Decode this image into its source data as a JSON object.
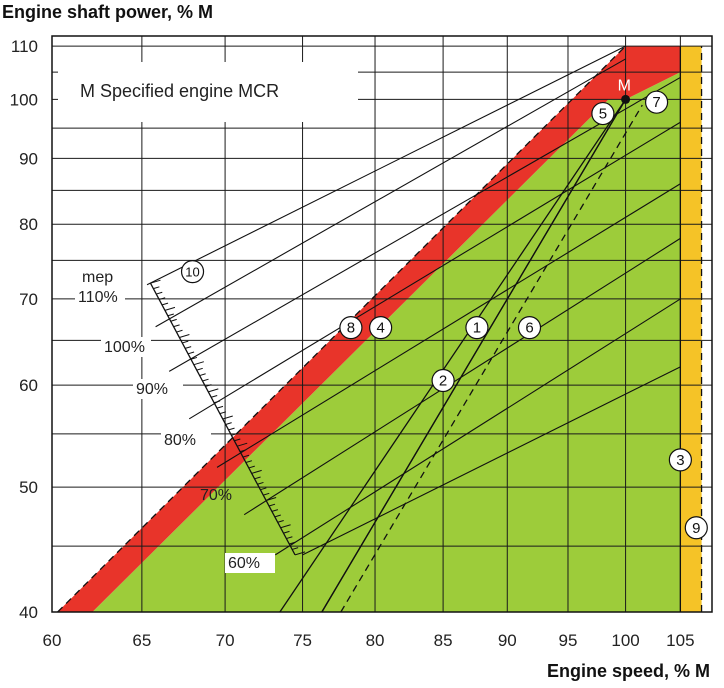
{
  "chart_data": {
    "type": "line",
    "title": "",
    "xlabel": "Engine speed, % M",
    "ylabel": "Engine shaft power, % M",
    "x_scale": "log",
    "y_scale": "log",
    "xlim": [
      60,
      108
    ],
    "ylim": [
      40,
      112
    ],
    "x_ticks": [
      60,
      65,
      70,
      75,
      80,
      85,
      90,
      95,
      100,
      105
    ],
    "y_ticks": [
      40,
      50,
      60,
      70,
      80,
      90,
      100,
      110
    ],
    "grid": true,
    "annotation": "M  Specified engine MCR",
    "mcr_label": "M",
    "mcr_point": [
      100,
      100
    ],
    "mep_label": "mep",
    "mep_ticks": [
      {
        "label": "110%",
        "x": 65.5,
        "y": 71.5
      },
      {
        "label": "100%",
        "x": 66.4,
        "y": 65.5
      },
      {
        "label": "90%",
        "x": 67.5,
        "y": 60.0
      },
      {
        "label": "80%",
        "x": 69.3,
        "y": 54.5
      },
      {
        "label": "70%",
        "x": 71.0,
        "y": 49.0
      },
      {
        "label": "60%",
        "x": 73.8,
        "y": 44.5
      }
    ],
    "regions": [
      {
        "name": "green",
        "color": "#9dcc3a",
        "points": [
          [
            62.2,
            40
          ],
          [
            98.5,
            100
          ],
          [
            100,
            100
          ],
          [
            105,
            105
          ],
          [
            105,
            40
          ]
        ]
      },
      {
        "name": "red",
        "color": "#e8342a",
        "points": [
          [
            60.3,
            40
          ],
          [
            100,
            110
          ],
          [
            105,
            110
          ],
          [
            105,
            105
          ],
          [
            100,
            100
          ],
          [
            98.5,
            100
          ],
          [
            62.2,
            40
          ]
        ]
      },
      {
        "name": "yellow",
        "color": "#f5c327",
        "points": [
          [
            105,
            40
          ],
          [
            105,
            110
          ],
          [
            107,
            110
          ],
          [
            107,
            40
          ]
        ]
      }
    ],
    "lines": [
      {
        "id": "1",
        "points": [
          [
            76.3,
            40
          ],
          [
            100,
            100
          ]
        ],
        "dash": false
      },
      {
        "id": "6",
        "points": [
          [
            77.6,
            40
          ],
          [
            101.5,
            99
          ]
        ],
        "dash": true
      },
      {
        "id": "2",
        "points": [
          [
            76.3,
            40
          ],
          [
            100,
            100
          ]
        ],
        "dash": false
      },
      {
        "id": "red-edge",
        "points": [
          [
            60.3,
            40
          ],
          [
            100,
            110
          ]
        ],
        "dash": true
      },
      {
        "id": "vert-105",
        "points": [
          [
            105,
            40
          ],
          [
            105,
            110
          ]
        ],
        "dash": false
      },
      {
        "id": "vert-107",
        "points": [
          [
            107,
            40
          ],
          [
            107,
            110
          ]
        ],
        "dash": true
      }
    ],
    "propeller_curves": [
      {
        "from": [
          65.3,
          71.8
        ],
        "to": [
          100,
          110
        ]
      },
      {
        "from": [
          65.8,
          66.6
        ],
        "to": [
          100,
          107.5
        ]
      },
      {
        "from": [
          66.6,
          61.5
        ],
        "to": [
          105,
          104
        ]
      },
      {
        "from": [
          67.8,
          56.5
        ],
        "to": [
          105,
          96
        ]
      },
      {
        "from": [
          69.5,
          51.8
        ],
        "to": [
          105,
          86
        ]
      },
      {
        "from": [
          71.2,
          47.6
        ],
        "to": [
          105,
          78
        ]
      },
      {
        "from": [
          73.2,
          44.3
        ],
        "to": [
          105,
          70
        ]
      },
      {
        "from": [
          75.0,
          44.3
        ],
        "to": [
          105,
          62
        ]
      }
    ],
    "circle_labels": [
      {
        "label": "1",
        "x": 87.6,
        "y": 66.5
      },
      {
        "label": "2",
        "x": 85.0,
        "y": 60.5
      },
      {
        "label": "3",
        "x": 105.0,
        "y": 52.5
      },
      {
        "label": "4",
        "x": 80.4,
        "y": 66.5
      },
      {
        "label": "5",
        "x": 98.0,
        "y": 97.5
      },
      {
        "label": "6",
        "x": 91.8,
        "y": 66.5
      },
      {
        "label": "7",
        "x": 102.8,
        "y": 99.5
      },
      {
        "label": "8",
        "x": 78.3,
        "y": 66.5
      },
      {
        "label": "9",
        "x": 106.5,
        "y": 46.5
      },
      {
        "label": "10",
        "x": 68.0,
        "y": 73.5
      }
    ]
  }
}
